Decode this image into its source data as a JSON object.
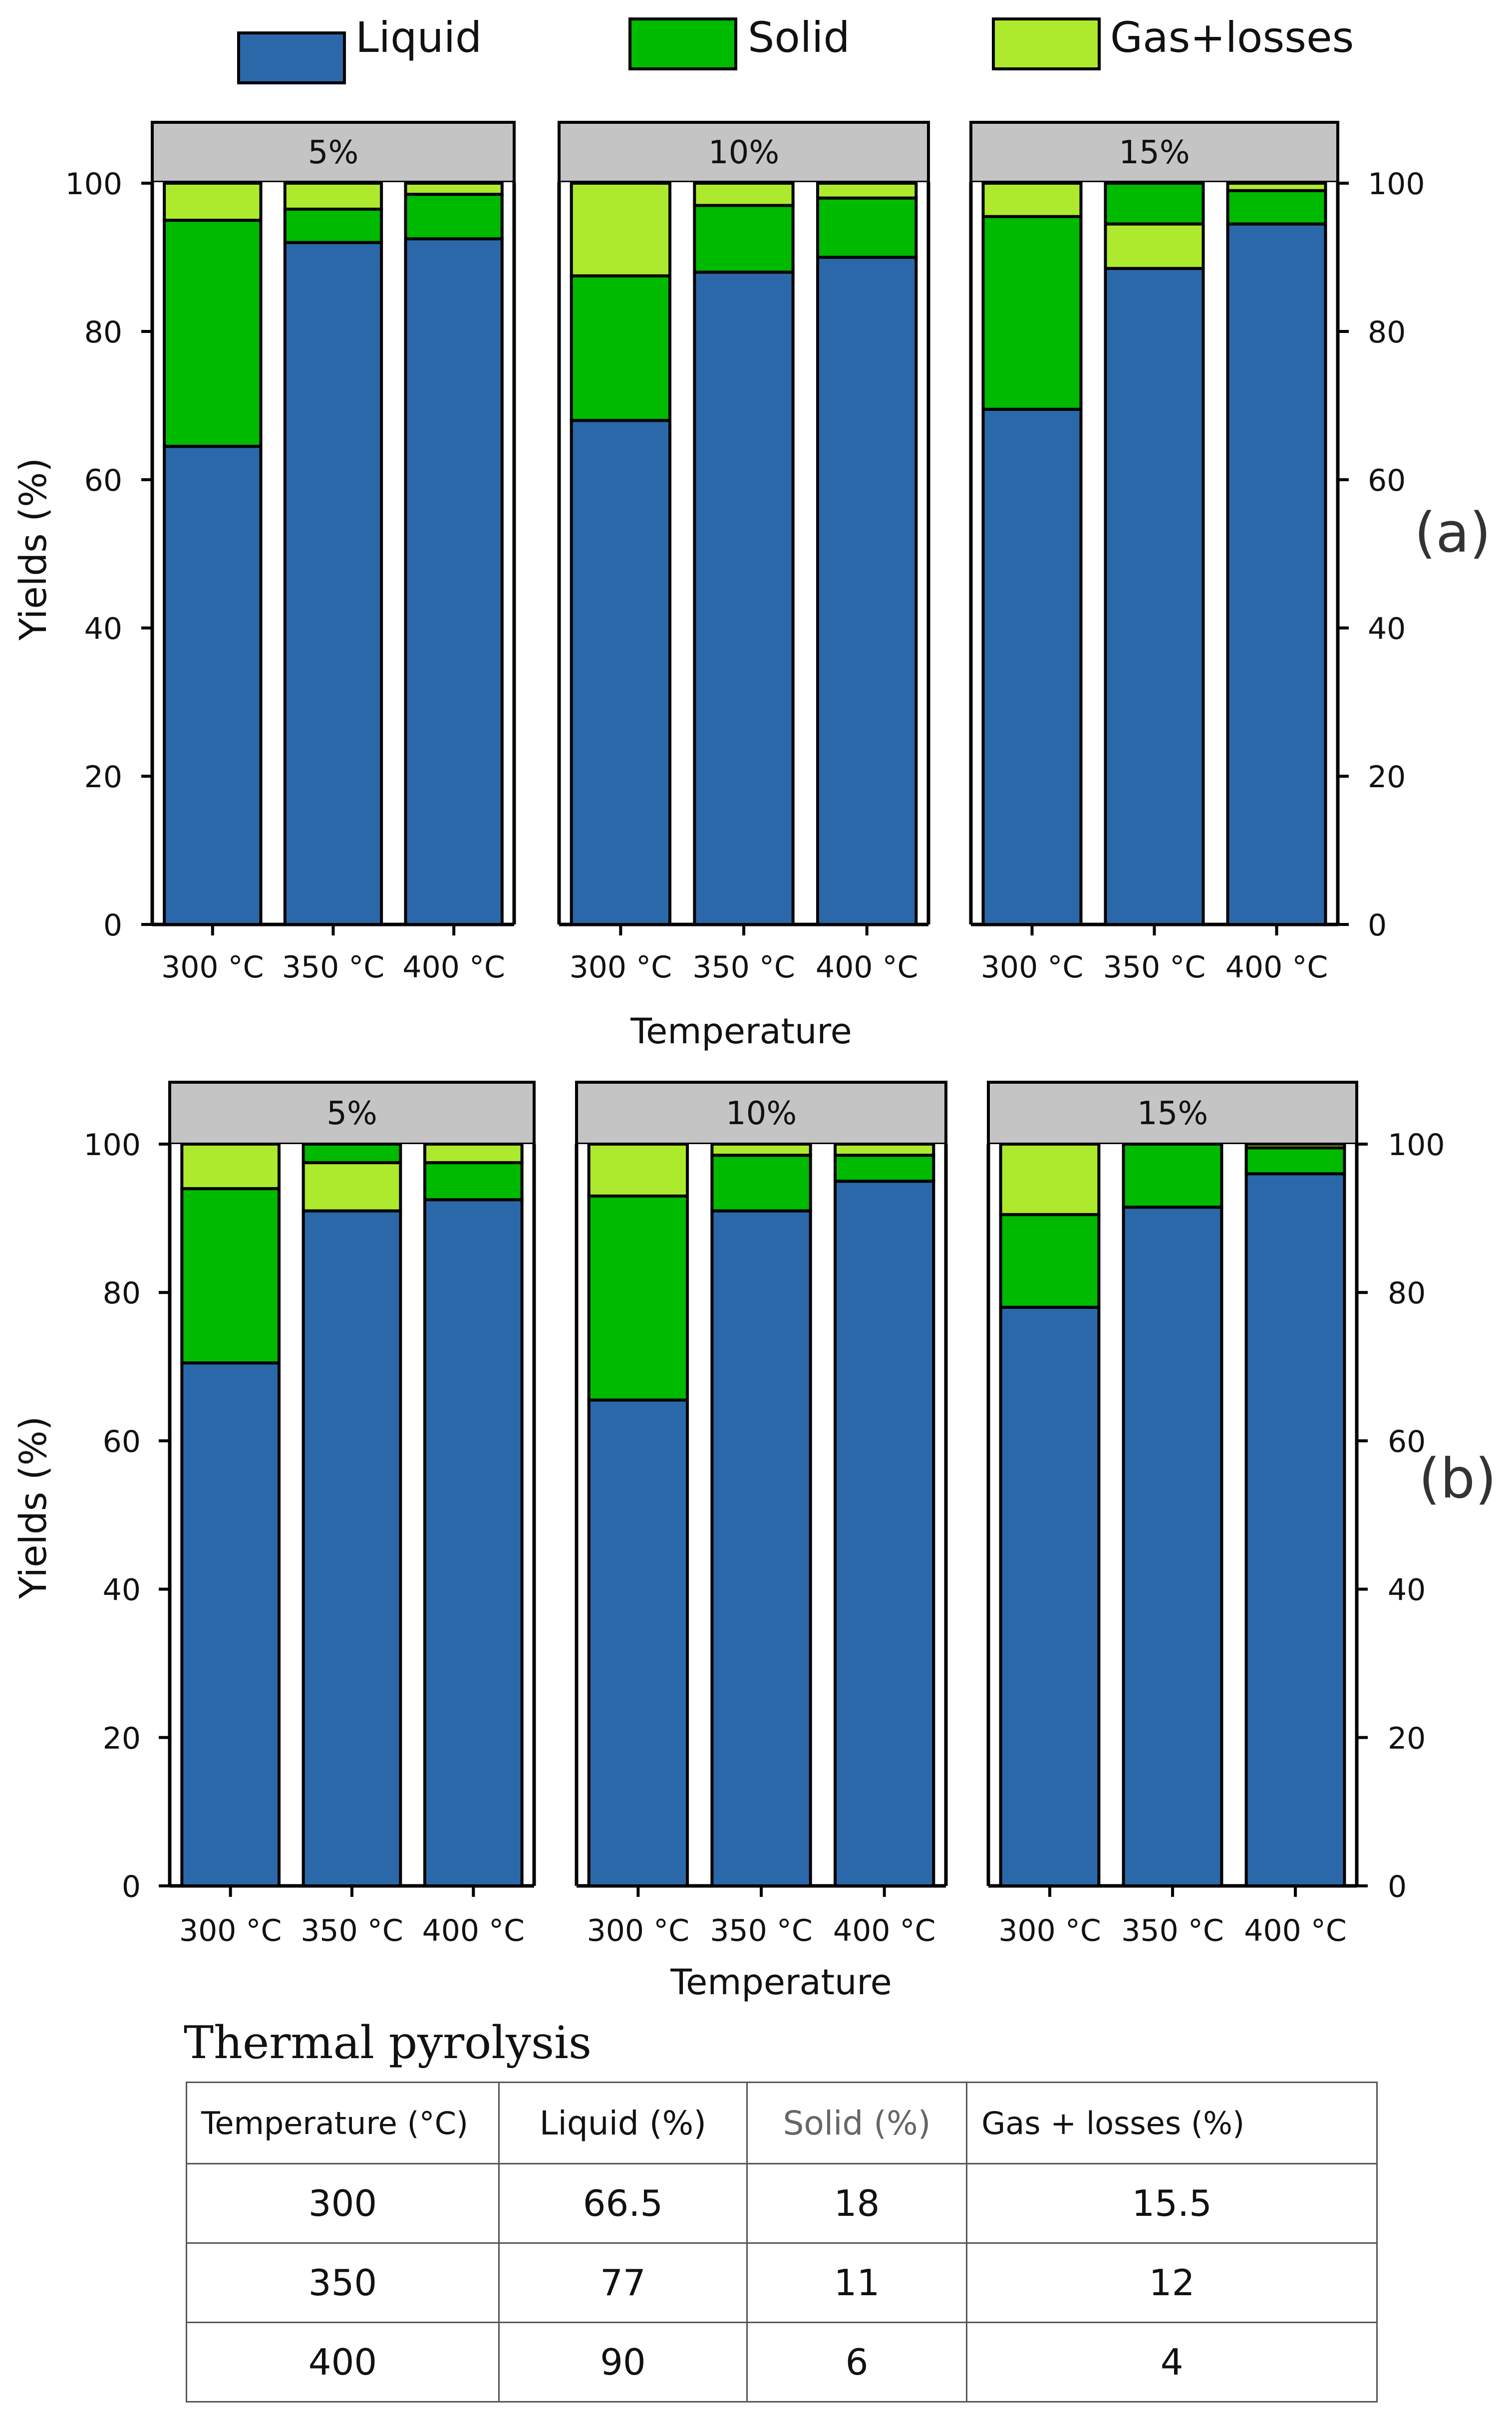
{
  "legend": [
    {
      "label": "Liquid",
      "color": "#2B68AA"
    },
    {
      "label": "Solid",
      "color": "#00BA00"
    },
    {
      "label": "Gas+losses",
      "color": "#ADEA2E"
    }
  ],
  "chart_data": [
    {
      "type": "bar",
      "stacked": true,
      "panel_label": "(a)",
      "xlabel": "Temperature",
      "ylabel": "Yields (%)",
      "ylim": [
        0,
        107
      ],
      "yticks": [
        "0",
        "20",
        "40",
        "60",
        "80",
        "100"
      ],
      "facets": [
        {
          "title": "5%",
          "categories": [
            "300 °C",
            "350 °C",
            "400 °C"
          ],
          "series": [
            {
              "name": "Liquid",
              "values": [
                64.5,
                92,
                92.5
              ]
            },
            {
              "name": "Solid",
              "values": [
                30.5,
                4.5,
                6
              ]
            },
            {
              "name": "Gas+losses",
              "values": [
                5,
                3.5,
                1.5
              ]
            }
          ]
        },
        {
          "title": "10%",
          "categories": [
            "300 °C",
            "350 °C",
            "400 °C"
          ],
          "series": [
            {
              "name": "Liquid",
              "values": [
                68,
                88,
                90
              ]
            },
            {
              "name": "Solid",
              "values": [
                19.5,
                9,
                8
              ]
            },
            {
              "name": "Gas+losses",
              "values": [
                12.5,
                3,
                2
              ]
            }
          ]
        },
        {
          "title": "15%",
          "categories": [
            "300 °C",
            "350 °C",
            "400 °C"
          ],
          "series": [
            {
              "name": "Liquid",
              "values": [
                69.5,
                88.5,
                94.5
              ]
            },
            {
              "name": "Solid",
              "values": [
                26,
                0,
                4.5
              ]
            },
            {
              "name": "Gas+losses",
              "values": [
                4.5,
                6,
                1
              ]
            },
            {
              "name": "Solid (top)",
              "values": [
                0,
                5.5,
                0
              ]
            }
          ]
        }
      ]
    },
    {
      "type": "bar",
      "stacked": true,
      "panel_label": "(b)",
      "xlabel": "Temperature",
      "ylabel": "Yields (%)",
      "ylim": [
        0,
        107
      ],
      "yticks": [
        "0",
        "20",
        "40",
        "60",
        "80",
        "100"
      ],
      "facets": [
        {
          "title": "5%",
          "categories": [
            "300 °C",
            "350 °C",
            "400 °C"
          ],
          "series": [
            {
              "name": "Liquid",
              "values": [
                70.5,
                91,
                92.5
              ]
            },
            {
              "name": "Solid",
              "values": [
                23.5,
                0,
                5
              ]
            },
            {
              "name": "Gas+losses",
              "values": [
                6,
                6.5,
                2.5
              ]
            },
            {
              "name": "Solid (top)",
              "values": [
                0,
                2.5,
                0
              ]
            }
          ]
        },
        {
          "title": "10%",
          "categories": [
            "300 °C",
            "350 °C",
            "400 °C"
          ],
          "series": [
            {
              "name": "Liquid",
              "values": [
                65.5,
                91,
                95
              ]
            },
            {
              "name": "Solid",
              "values": [
                27.5,
                7.5,
                3.5
              ]
            },
            {
              "name": "Gas+losses",
              "values": [
                7,
                1.5,
                1.5
              ]
            }
          ]
        },
        {
          "title": "15%",
          "categories": [
            "300 °C",
            "350 °C",
            "400 °C"
          ],
          "series": [
            {
              "name": "Liquid",
              "values": [
                78,
                91.5,
                96
              ]
            },
            {
              "name": "Solid",
              "values": [
                12.5,
                8.5,
                3.5
              ]
            },
            {
              "name": "Gas+losses",
              "values": [
                9.5,
                0,
                0.5
              ]
            }
          ]
        }
      ]
    }
  ],
  "table": {
    "title": "Thermal pyrolysis",
    "headers": [
      "Temperature (°C)",
      "Liquid (%)",
      "Solid (%)",
      "Gas + losses (%)"
    ],
    "rows": [
      [
        "300",
        "66.5",
        "18",
        "15.5"
      ],
      [
        "350",
        "77",
        "11",
        "12"
      ],
      [
        "400",
        "90",
        "6",
        "4"
      ]
    ]
  }
}
